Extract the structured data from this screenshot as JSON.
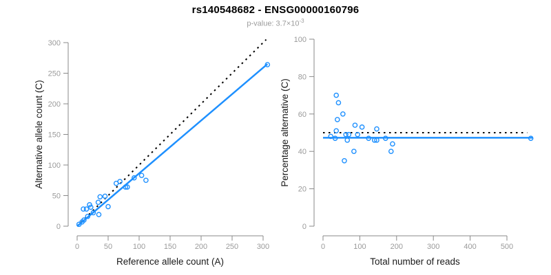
{
  "header": {
    "title": "rs140548682 - ENSG00000160796",
    "subtitle_main": "p-value: 3.7×10",
    "subtitle_exponent": "-3"
  },
  "colors": {
    "points": "#1E90FF",
    "fit_line": "#1E90FF",
    "reference_line": "#000000",
    "axis": "#888888",
    "tick_label": "#9a9a9a",
    "axis_title": "#1a1a1a",
    "subtitle": "#9b9b9b"
  },
  "chart_data": [
    {
      "type": "scatter",
      "name": "allele-counts-scatter",
      "xlabel": "Reference allele count (A)",
      "ylabel": "Alternative allele count (C)",
      "xlim": [
        0,
        310
      ],
      "ylim": [
        0,
        310
      ],
      "x_ticks": [
        0,
        50,
        100,
        150,
        200,
        250,
        300
      ],
      "y_ticks": [
        0,
        50,
        100,
        150,
        200,
        250,
        300
      ],
      "grid": false,
      "legend": false,
      "points": [
        [
          3,
          3
        ],
        [
          8,
          7
        ],
        [
          11,
          10
        ],
        [
          17,
          16
        ],
        [
          10,
          28
        ],
        [
          15,
          28
        ],
        [
          20,
          35
        ],
        [
          22,
          31
        ],
        [
          26,
          22
        ],
        [
          34,
          39
        ],
        [
          35,
          19
        ],
        [
          37,
          48
        ],
        [
          45,
          49
        ],
        [
          50,
          32
        ],
        [
          63,
          70
        ],
        [
          69,
          73
        ],
        [
          78,
          64
        ],
        [
          81,
          64
        ],
        [
          92,
          79
        ],
        [
          104,
          83
        ],
        [
          111,
          75
        ],
        [
          307,
          264
        ]
      ],
      "lines": [
        {
          "name": "identity-reference-line",
          "style": "dotted",
          "color": "#000000",
          "from": [
            0,
            0
          ],
          "to": [
            305,
            305
          ]
        },
        {
          "name": "regression-fit-line",
          "style": "solid",
          "color": "#1E90FF",
          "from": [
            0,
            0
          ],
          "to": [
            307,
            265
          ]
        }
      ]
    },
    {
      "type": "scatter",
      "name": "percentage-alternative-scatter",
      "xlabel": "Total number of reads",
      "ylabel": "Percentage alternative (C)",
      "xlim": [
        0,
        575
      ],
      "ylim": [
        0,
        100
      ],
      "x_ticks": [
        0,
        100,
        200,
        300,
        400,
        500
      ],
      "y_ticks": [
        0,
        20,
        40,
        60,
        80,
        100
      ],
      "grid": false,
      "legend": false,
      "points": [
        [
          21,
          48
        ],
        [
          33,
          47
        ],
        [
          36,
          51
        ],
        [
          36,
          70
        ],
        [
          39,
          57
        ],
        [
          42,
          66
        ],
        [
          54,
          60
        ],
        [
          58,
          35
        ],
        [
          62,
          49
        ],
        [
          66,
          46
        ],
        [
          70,
          49
        ],
        [
          84,
          40
        ],
        [
          87,
          54
        ],
        [
          94,
          49
        ],
        [
          106,
          53
        ],
        [
          124,
          47
        ],
        [
          140,
          46
        ],
        [
          146,
          46
        ],
        [
          146,
          52
        ],
        [
          170,
          47
        ],
        [
          185,
          40
        ],
        [
          189,
          44
        ],
        [
          565,
          47
        ]
      ],
      "lines": [
        {
          "name": "expected-50pct-line",
          "style": "dotted",
          "color": "#000000",
          "from": [
            0,
            50
          ],
          "to": [
            555,
            50
          ]
        },
        {
          "name": "mean-percentage-line",
          "style": "solid",
          "color": "#1E90FF",
          "from": [
            0,
            47.3
          ],
          "to": [
            570,
            47.3
          ]
        }
      ]
    }
  ]
}
